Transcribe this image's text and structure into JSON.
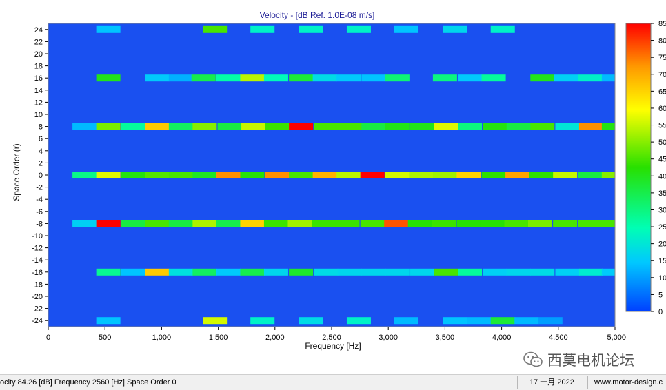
{
  "chart_data": {
    "type": "heatmap",
    "title": "Velocity - [dB Ref. 1.0E-08 m/s]",
    "xlabel": "Frequency [Hz]",
    "ylabel": "Space Order (r)",
    "xlim": [
      0,
      5000
    ],
    "ylim": [
      -25,
      25
    ],
    "x_ticks": [
      0,
      500,
      1000,
      1500,
      2000,
      2500,
      3000,
      3500,
      4000,
      4500,
      5000
    ],
    "x_tick_labels": [
      "0",
      "500",
      "1,000",
      "1,500",
      "2,000",
      "2,500",
      "3,000",
      "3,500",
      "4,000",
      "4,500",
      "5,000"
    ],
    "y_ticks": [
      24,
      22,
      20,
      18,
      16,
      14,
      12,
      10,
      8,
      6,
      4,
      2,
      0,
      -2,
      -4,
      -6,
      -8,
      -10,
      -12,
      -14,
      -16,
      -18,
      -20,
      -22,
      -24
    ],
    "colorbar": {
      "min": 0,
      "max": 85,
      "ticks": [
        85,
        80,
        75,
        70,
        65,
        60,
        55,
        50,
        45,
        40,
        35,
        30,
        25,
        20,
        15,
        10,
        5,
        0
      ]
    },
    "cell_width_hz": 213,
    "rows": [
      {
        "order": 24,
        "cells": [
          [
            530,
            14
          ],
          [
            1470,
            45
          ],
          [
            1890,
            22
          ],
          [
            2320,
            22
          ],
          [
            2740,
            22
          ],
          [
            3160,
            14
          ],
          [
            3590,
            17
          ],
          [
            4010,
            22
          ]
        ]
      },
      {
        "order": 16,
        "cells": [
          [
            530,
            40
          ],
          [
            960,
            15
          ],
          [
            1170,
            12
          ],
          [
            1370,
            35
          ],
          [
            1590,
            26
          ],
          [
            1800,
            54
          ],
          [
            2010,
            24
          ],
          [
            2230,
            37
          ],
          [
            2440,
            18
          ],
          [
            2650,
            15
          ],
          [
            2870,
            14
          ],
          [
            3080,
            31
          ],
          [
            3500,
            30
          ],
          [
            3720,
            15
          ],
          [
            3930,
            27
          ],
          [
            4360,
            40
          ],
          [
            4570,
            16
          ],
          [
            4780,
            22
          ],
          [
            4990,
            13
          ]
        ]
      },
      {
        "order": 8,
        "cells": [
          [
            320,
            13
          ],
          [
            530,
            49
          ],
          [
            750,
            27
          ],
          [
            960,
            66
          ],
          [
            1170,
            33
          ],
          [
            1380,
            50
          ],
          [
            1600,
            36
          ],
          [
            1810,
            55
          ],
          [
            2020,
            44
          ],
          [
            2230,
            85
          ],
          [
            2450,
            45
          ],
          [
            2660,
            45
          ],
          [
            2870,
            36
          ],
          [
            3080,
            40
          ],
          [
            3300,
            40
          ],
          [
            3510,
            57
          ],
          [
            3720,
            30
          ],
          [
            3940,
            41
          ],
          [
            4150,
            36
          ],
          [
            4360,
            45
          ],
          [
            4580,
            20
          ],
          [
            4790,
            73
          ],
          [
            4990,
            41
          ]
        ]
      },
      {
        "order": 0,
        "cells": [
          [
            320,
            29
          ],
          [
            530,
            57
          ],
          [
            750,
            41
          ],
          [
            960,
            46
          ],
          [
            1170,
            45
          ],
          [
            1380,
            39
          ],
          [
            1590,
            73
          ],
          [
            1800,
            42
          ],
          [
            2020,
            73
          ],
          [
            2230,
            45
          ],
          [
            2440,
            69
          ],
          [
            2650,
            54
          ],
          [
            2860,
            88
          ],
          [
            3080,
            56
          ],
          [
            3290,
            53
          ],
          [
            3500,
            52
          ],
          [
            3710,
            65
          ],
          [
            3930,
            43
          ],
          [
            4140,
            71
          ],
          [
            4350,
            43
          ],
          [
            4560,
            55
          ],
          [
            4780,
            36
          ],
          [
            4990,
            50
          ],
          [
            5200,
            45
          ]
        ]
      },
      {
        "order": -8,
        "cells": [
          [
            320,
            16
          ],
          [
            530,
            87
          ],
          [
            750,
            36
          ],
          [
            960,
            45
          ],
          [
            1170,
            36
          ],
          [
            1380,
            53
          ],
          [
            1590,
            35
          ],
          [
            1800,
            65
          ],
          [
            2010,
            44
          ],
          [
            2220,
            52
          ],
          [
            2430,
            44
          ],
          [
            2640,
            44
          ],
          [
            2860,
            45
          ],
          [
            3070,
            78
          ],
          [
            3280,
            42
          ],
          [
            3490,
            44
          ],
          [
            3710,
            42
          ],
          [
            3920,
            42
          ],
          [
            4130,
            45
          ],
          [
            4340,
            49
          ],
          [
            4560,
            45
          ],
          [
            4780,
            45
          ],
          [
            4990,
            45
          ]
        ]
      },
      {
        "order": -16,
        "cells": [
          [
            530,
            28
          ],
          [
            750,
            14
          ],
          [
            960,
            66
          ],
          [
            1170,
            19
          ],
          [
            1380,
            33
          ],
          [
            1590,
            15
          ],
          [
            1800,
            35
          ],
          [
            2010,
            17
          ],
          [
            2230,
            38
          ],
          [
            2450,
            18
          ],
          [
            2660,
            17
          ],
          [
            2870,
            17
          ],
          [
            3080,
            17
          ],
          [
            3300,
            17
          ],
          [
            3510,
            45
          ],
          [
            3720,
            27
          ],
          [
            3940,
            16
          ],
          [
            4150,
            17
          ],
          [
            4360,
            18
          ],
          [
            4580,
            16
          ],
          [
            4790,
            21
          ],
          [
            4990,
            15
          ]
        ]
      },
      {
        "order": -24,
        "cells": [
          [
            530,
            14
          ],
          [
            1470,
            56
          ],
          [
            1890,
            22
          ],
          [
            2320,
            18
          ],
          [
            2740,
            22
          ],
          [
            3160,
            13
          ],
          [
            3590,
            14
          ],
          [
            3800,
            13
          ],
          [
            4010,
            37
          ],
          [
            4220,
            13
          ],
          [
            4430,
            10
          ]
        ]
      }
    ]
  },
  "status_bar": {
    "readout": "ocity 84.26 [dB]  Frequency 2560 [Hz]  Space Order 0",
    "date": "17 一月 2022",
    "website": "www.motor-design.c"
  },
  "watermark": {
    "text": "西莫电机论坛",
    "icon": "wechat-icon"
  },
  "colors": {
    "plot_background": "#1a50f0",
    "title_color": "#1e1e96"
  }
}
